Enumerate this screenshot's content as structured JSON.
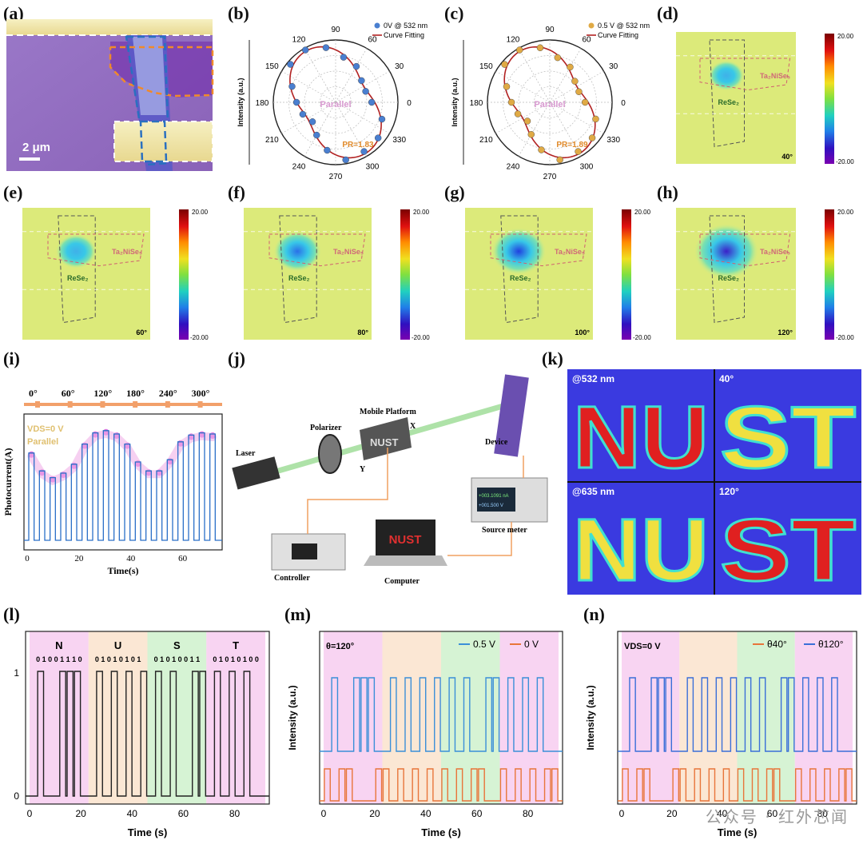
{
  "panel_letters": [
    "(a)",
    "(b)",
    "(c)",
    "(d)",
    "(e)",
    "(f)",
    "(g)",
    "(h)",
    "(i)",
    "(j)",
    "(k)",
    "(l)",
    "(m)",
    "(n)"
  ],
  "panel_a": {
    "scale_bar": "2 μm"
  },
  "polar": [
    {
      "legend_points": "0V @ 532 nm",
      "legend_fit": "Curve Fitting",
      "center_text": "Parallel",
      "pr_text": "PR=1.83",
      "ylabel": "Intensity (a.u.)",
      "dot_color": "#4a7fd0",
      "fit_color": "#b22222",
      "phase": 120,
      "ratio": 1.83
    },
    {
      "legend_points": "0.5 V @ 532 nm",
      "legend_fit": "Curve Fitting",
      "center_text": "Parallel",
      "pr_text": "PR=1.89",
      "ylabel": "Intensity (a.u.)",
      "dot_color": "#e0aa45",
      "fit_color": "#b22222",
      "phase": 120,
      "ratio": 1.89
    }
  ],
  "polar_angles": [
    "0",
    "30",
    "60",
    "90",
    "120",
    "150",
    "180",
    "210",
    "240",
    "270",
    "300",
    "330"
  ],
  "maps": [
    {
      "angle": "40°",
      "intensity": 0.35
    },
    {
      "angle": "60°",
      "intensity": 0.45
    },
    {
      "angle": "80°",
      "intensity": 0.6
    },
    {
      "angle": "100°",
      "intensity": 0.75
    },
    {
      "angle": "120°",
      "intensity": 0.95
    }
  ],
  "map_labels": {
    "material_1": "ReSe₂",
    "material_2": "Ta₂NiSe₅"
  },
  "colorbar": {
    "max": "20.00",
    "min": "-20.00"
  },
  "panel_i": {
    "angle_labels": [
      "0°",
      "60°",
      "120°",
      "180°",
      "240°",
      "300°"
    ],
    "note_vds": "VDS=0 V",
    "note_mode": "Parallel",
    "xlabel": "Time(s)",
    "ylabel": "Photocurrent(A)",
    "xticks": [
      "0",
      "20",
      "40",
      "60"
    ],
    "peaks": [
      0.78,
      0.62,
      0.56,
      0.6,
      0.68,
      0.86,
      0.96,
      0.98,
      0.95,
      0.86,
      0.7,
      0.62,
      0.62,
      0.72,
      0.88,
      0.94,
      0.96,
      0.95
    ]
  },
  "panel_j": {
    "laser": "Laser",
    "polarizer": "Polarizer",
    "platform": "Mobile Platform",
    "axis_x": "X",
    "axis_y": "Y",
    "device": "Device",
    "source_meter": "Source meter",
    "controller": "Controller",
    "computer": "Computer",
    "screen_text": "NUST",
    "sample_text": "NUST",
    "meter_line1": "+003.1091 nA",
    "meter_line2": "+001.500 V"
  },
  "panel_k": {
    "quadrants": [
      {
        "label": "@532 nm",
        "text": "NU"
      },
      {
        "label": "40°",
        "text": "ST"
      },
      {
        "label": "@635 nm",
        "text": "NU"
      },
      {
        "label": "120°",
        "text": "ST"
      }
    ]
  },
  "chart_data": [
    {
      "type": "line",
      "title": "(l)",
      "xlabel": "Time (s)",
      "ylabel": "",
      "xlim": [
        0,
        95
      ],
      "xticks": [
        "0",
        "20",
        "40",
        "60",
        "80"
      ],
      "yticks": [
        "0",
        "1"
      ],
      "groups": [
        "N",
        "U",
        "S",
        "T"
      ],
      "group_colors": [
        "#f6c6ee",
        "#f9dfc6",
        "#c8efc6",
        "#f6c6ee"
      ],
      "bits": [
        [
          0,
          1,
          0,
          0,
          1,
          1,
          1,
          0
        ],
        [
          0,
          1,
          0,
          1,
          0,
          1,
          0,
          1
        ],
        [
          0,
          1,
          0,
          1,
          0,
          0,
          1,
          1
        ],
        [
          0,
          1,
          0,
          1,
          0,
          1,
          0,
          0
        ]
      ],
      "bit_strings": [
        "0 1 0 0 1 1 1 0",
        "0 1 0 1 0 1 0 1",
        "0 1 0 1 0 0 1 1",
        "0 1 0 1 0 1 0 0"
      ]
    },
    {
      "type": "line",
      "title": "(m)",
      "annotation": "θ=120°",
      "xlabel": "Time (s)",
      "ylabel": "Intensity (a.u.)",
      "xticks": [
        "0",
        "20",
        "40",
        "60",
        "80"
      ],
      "series": [
        {
          "name": "0.5 V",
          "color": "#3a8fd8",
          "level": "high"
        },
        {
          "name": "0 V",
          "color": "#e8753a",
          "level": "low"
        }
      ]
    },
    {
      "type": "line",
      "title": "(n)",
      "annotation": "VDS=0 V",
      "xlabel": "Time (s)",
      "ylabel": "Intensity (a.u.)",
      "xticks": [
        "0",
        "20",
        "40",
        "60",
        "80"
      ],
      "series": [
        {
          "name": "θ40°",
          "color": "#e8753a",
          "level": "low"
        },
        {
          "name": "θ120°",
          "color": "#3a6fd8",
          "level": "high"
        }
      ]
    }
  ],
  "watermark": "公众号 · 红外芯闻"
}
